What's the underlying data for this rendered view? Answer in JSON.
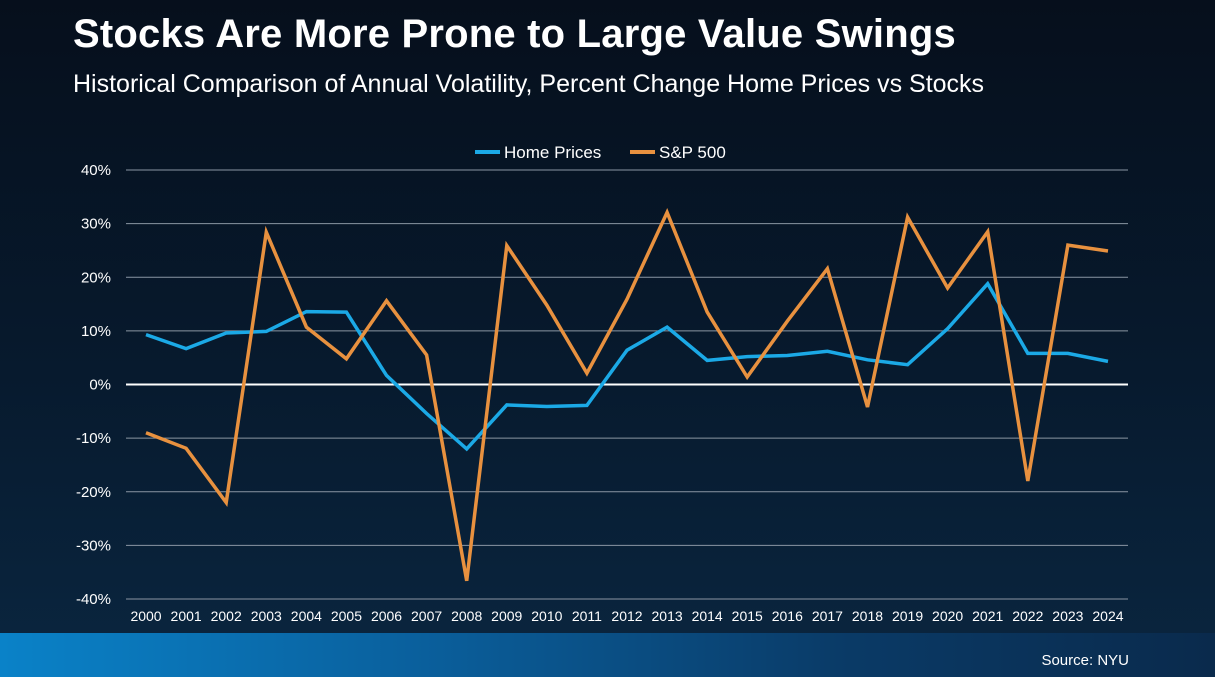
{
  "header": {
    "title": "Stocks Are More Prone to Large Value Swings",
    "subtitle": "Historical Comparison of Annual Volatility, Percent Change Home Prices vs Stocks"
  },
  "footer": {
    "source": "Source: NYU"
  },
  "colors": {
    "home_prices": "#1ba9e6",
    "sp500": "#e8913f",
    "gridline": "#8a96a3",
    "zero_line": "#ffffff",
    "bottom_bar": "#0a82c8"
  },
  "chart_data": {
    "type": "line",
    "title": "Stocks Are More Prone to Large Value Swings",
    "subtitle": "Historical Comparison of Annual Volatility, Percent Change Home Prices vs Stocks",
    "xlabel": "",
    "ylabel": "",
    "categories": [
      "2000",
      "2001",
      "2002",
      "2003",
      "2004",
      "2005",
      "2006",
      "2007",
      "2008",
      "2009",
      "2010",
      "2011",
      "2012",
      "2013",
      "2014",
      "2015",
      "2016",
      "2017",
      "2018",
      "2019",
      "2020",
      "2021",
      "2022",
      "2023",
      "2024"
    ],
    "series": [
      {
        "name": "Home Prices",
        "color": "#1ba9e6",
        "values": [
          9.3,
          6.7,
          9.6,
          9.9,
          13.6,
          13.5,
          1.7,
          -5.4,
          -12.0,
          -3.8,
          -4.1,
          -3.9,
          6.4,
          10.7,
          4.5,
          5.2,
          5.4,
          6.2,
          4.6,
          3.7,
          10.4,
          18.8,
          5.8,
          5.8,
          4.3
        ]
      },
      {
        "name": "S&P 500",
        "color": "#e8913f",
        "values": [
          -9.0,
          -11.9,
          -22.0,
          28.4,
          10.7,
          4.8,
          15.6,
          5.5,
          -36.6,
          25.9,
          14.8,
          2.1,
          15.9,
          32.1,
          13.5,
          1.4,
          11.8,
          21.6,
          -4.2,
          31.2,
          18.0,
          28.5,
          -18.0,
          26.0,
          24.9
        ]
      }
    ],
    "ylim": [
      -40,
      40
    ],
    "yticks": [
      -40,
      -30,
      -20,
      -10,
      0,
      10,
      20,
      30,
      40
    ],
    "ytick_labels": [
      "-40%",
      "-30%",
      "-20%",
      "-10%",
      "0%",
      "10%",
      "20%",
      "30%",
      "40%"
    ],
    "grid": true,
    "legend_position": "top-center",
    "source": "Source: NYU"
  }
}
